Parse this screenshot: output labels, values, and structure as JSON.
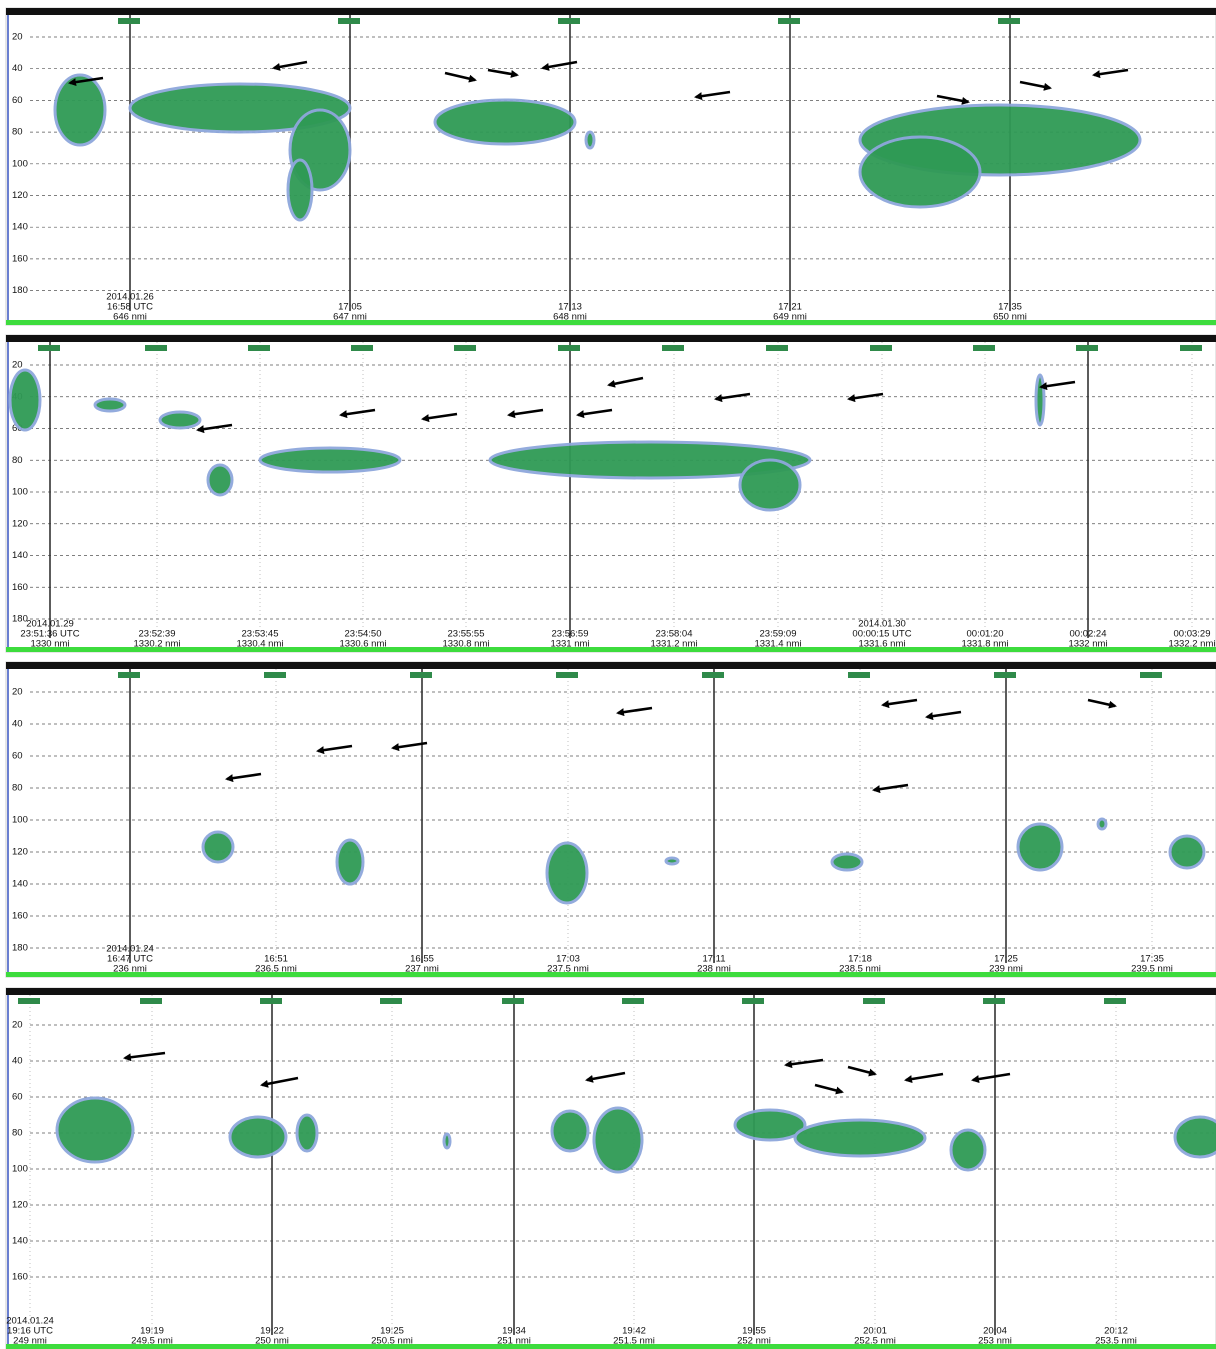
{
  "panels": [
    {
      "depth_ticks": [
        20,
        40,
        60,
        80,
        100,
        120,
        140,
        160,
        180
      ],
      "markers": [
        {
          "date": "2014.01.26",
          "time": "16:58 UTC",
          "distance": "646 nmi"
        },
        {
          "time": "17:05",
          "distance": "647 nmi"
        },
        {
          "time": "17:13",
          "distance": "648 nmi"
        },
        {
          "time": "17:21",
          "distance": "649 nmi"
        },
        {
          "time": "17:35",
          "distance": "650 nmi"
        }
      ]
    },
    {
      "depth_ticks": [
        20,
        40,
        60,
        80,
        100,
        120,
        140,
        160,
        180
      ],
      "markers": [
        {
          "date": "2014.01.29",
          "time": "23:51:36 UTC",
          "distance": "1330 nmi"
        },
        {
          "time": "23:52:39",
          "distance": "1330.2 nmi"
        },
        {
          "time": "23:53:45",
          "distance": "1330.4 nmi"
        },
        {
          "time": "23:54:50",
          "distance": "1330.6 nmi"
        },
        {
          "time": "23:55:55",
          "distance": "1330.8 nmi"
        },
        {
          "time": "23:56:59",
          "distance": "1331 nmi"
        },
        {
          "time": "23:58:04",
          "distance": "1331.2 nmi"
        },
        {
          "time": "23:59:09",
          "distance": "1331.4 nmi"
        },
        {
          "date": "2014.01.30",
          "time": "00:00:15 UTC",
          "distance": "1331.6 nmi"
        },
        {
          "time": "00:01:20",
          "distance": "1331.8 nmi"
        },
        {
          "time": "00:02:24",
          "distance": "1332 nmi"
        },
        {
          "time": "00:03:29",
          "distance": "1332.2 nmi"
        }
      ]
    },
    {
      "depth_ticks": [
        20,
        40,
        60,
        80,
        100,
        120,
        140,
        160,
        180
      ],
      "markers": [
        {
          "date": "2014.01.24",
          "time": "16:47 UTC",
          "distance": "236 nmi"
        },
        {
          "time": "16:51",
          "distance": "236.5 nmi"
        },
        {
          "time": "16:55",
          "distance": "237 nmi"
        },
        {
          "time": "17:03",
          "distance": "237.5 nmi"
        },
        {
          "time": "17:11",
          "distance": "238 nmi"
        },
        {
          "time": "17:18",
          "distance": "238.5 nmi"
        },
        {
          "time": "17:25",
          "distance": "239 nmi"
        },
        {
          "time": "17:35",
          "distance": "239.5 nmi"
        }
      ]
    },
    {
      "depth_ticks": [
        20,
        40,
        60,
        80,
        100,
        120,
        140,
        160
      ],
      "markers": [
        {
          "date": "2014.01.24",
          "time": "19:16 UTC",
          "distance": "249 nmi"
        },
        {
          "time": "19:19",
          "distance": "249.5 nmi"
        },
        {
          "time": "19:22",
          "distance": "250 nmi"
        },
        {
          "time": "19:25",
          "distance": "250.5 nmi"
        },
        {
          "time": "19:34",
          "distance": "251 nmi"
        },
        {
          "time": "19:42",
          "distance": "251.5 nmi"
        },
        {
          "time": "19:55",
          "distance": "252 nmi"
        },
        {
          "time": "20:01",
          "distance": "252.5 nmi"
        },
        {
          "time": "20:04",
          "distance": "253 nmi"
        },
        {
          "time": "20:12",
          "distance": "253.5 nmi"
        }
      ]
    }
  ]
}
